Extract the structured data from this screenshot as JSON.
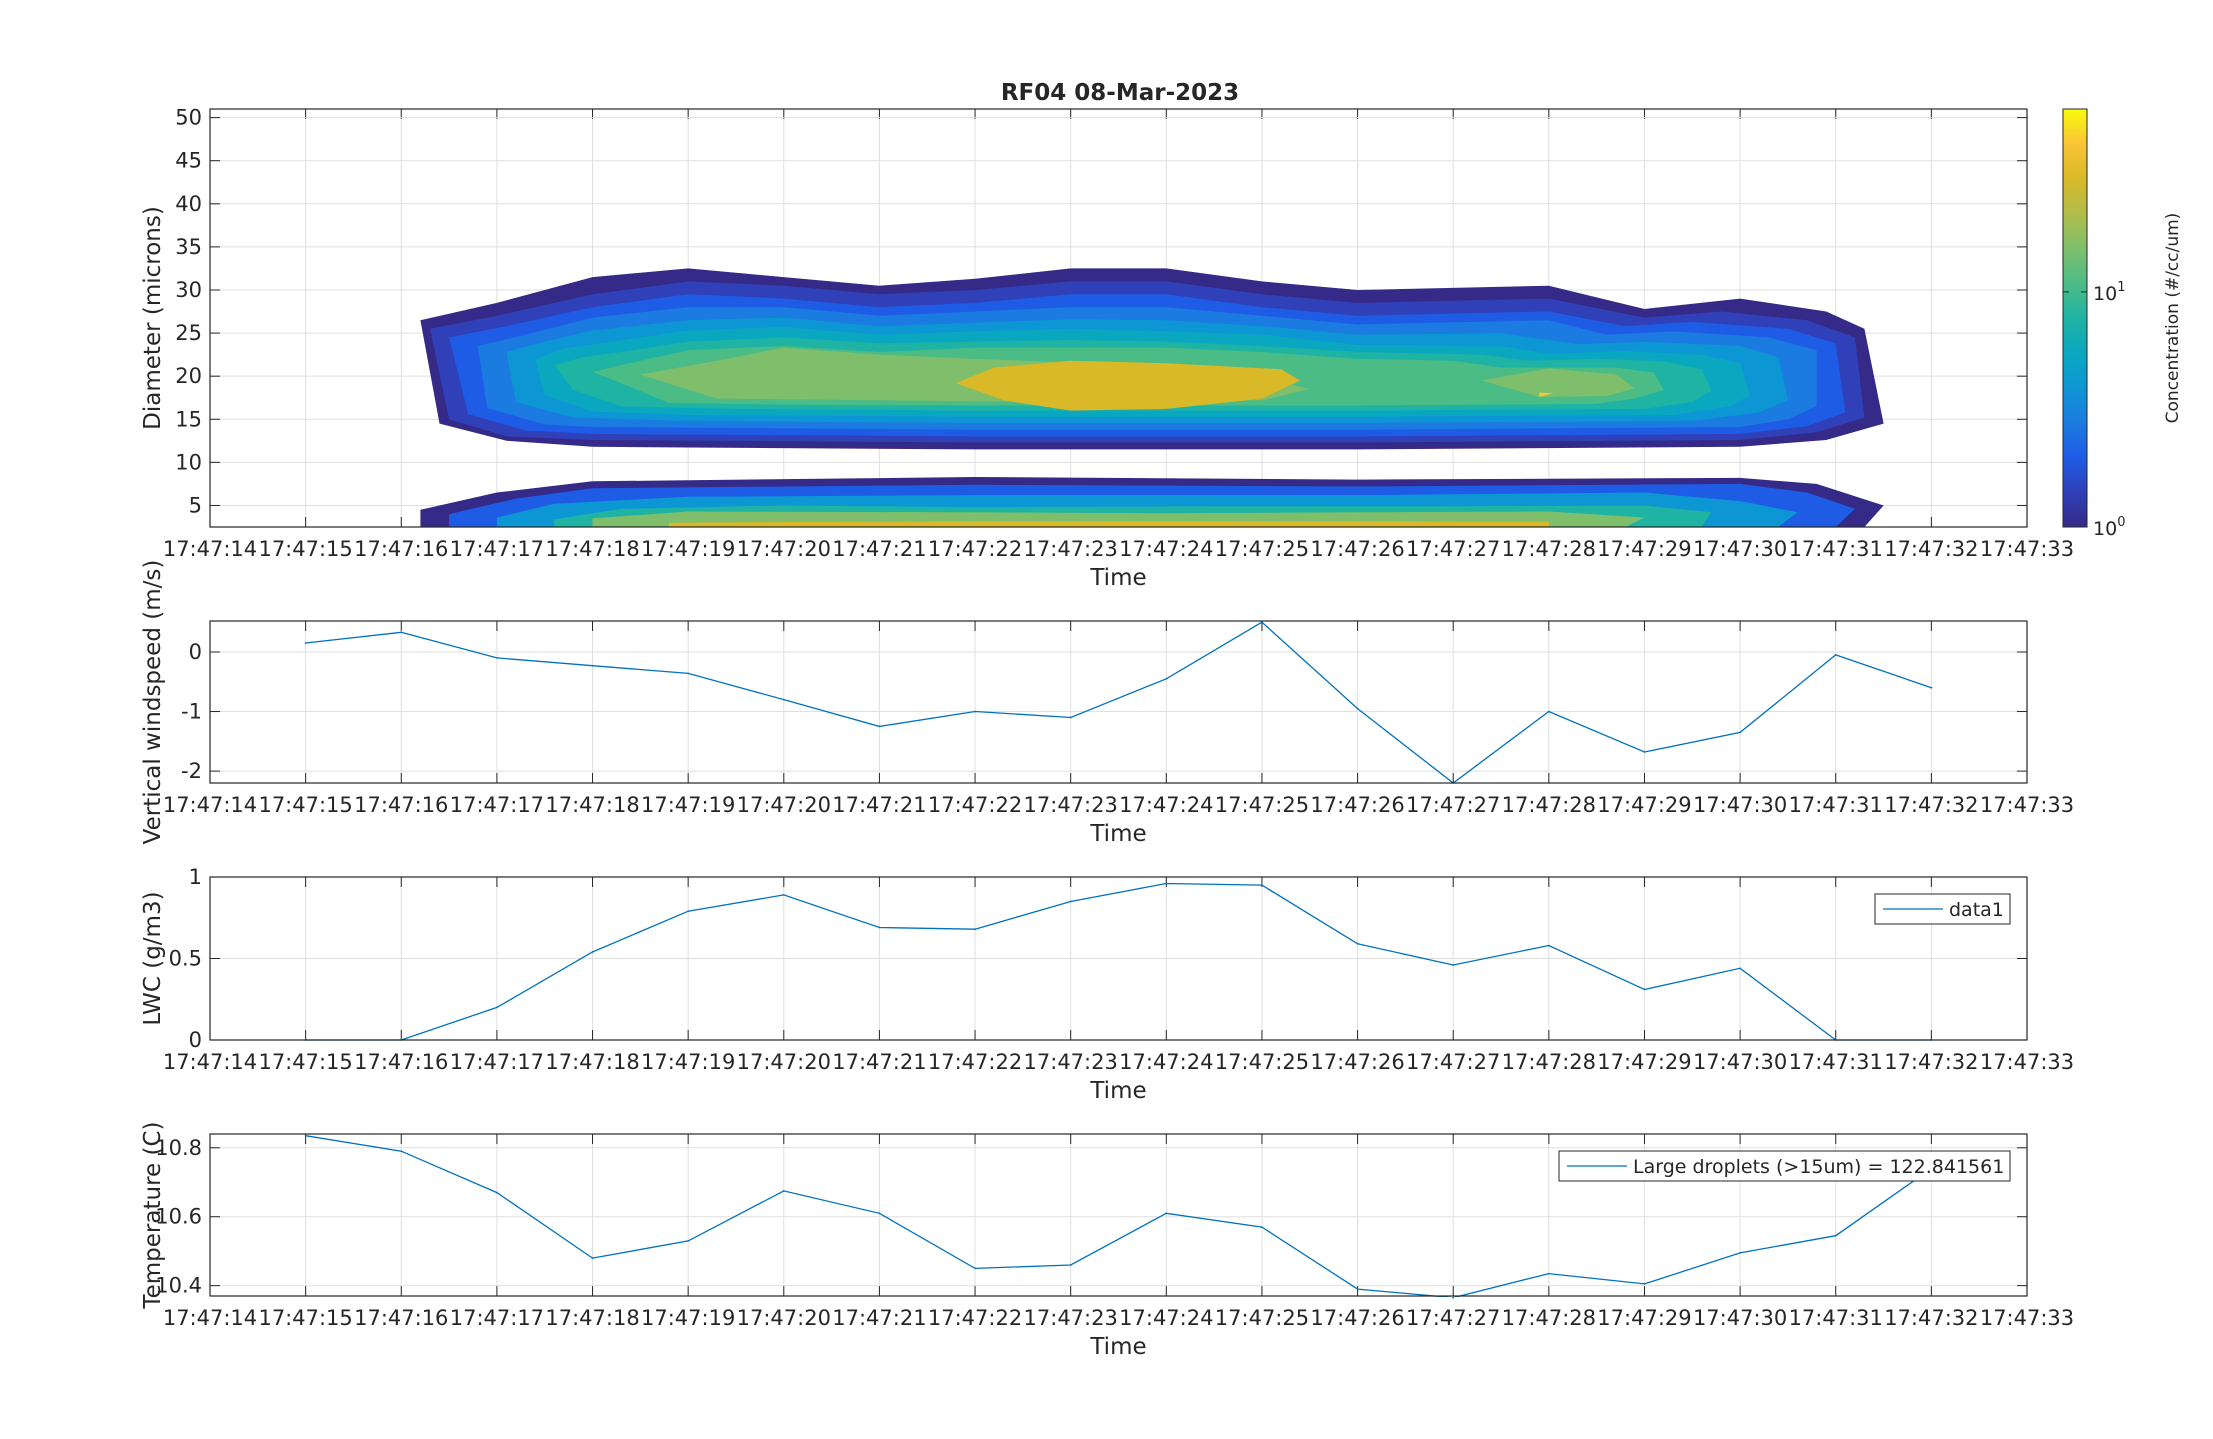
{
  "figure": {
    "title": "RF04 08-Mar-2023"
  },
  "colors": {
    "line": "#0072bd",
    "grid": "#dfdfdf",
    "axis": "#262626",
    "parula": [
      "#352a87",
      "#3040b8",
      "#1e5ce6",
      "#1c7be0",
      "#0d96d4",
      "#0aa8c0",
      "#1fb3a4",
      "#4cbc86",
      "#7fbf6c",
      "#b1bd4a",
      "#d9b927",
      "#f9c436",
      "#f9fb0e"
    ]
  },
  "time_ticks": [
    "17:47:14",
    "17:47:15",
    "17:47:16",
    "17:47:17",
    "17:47:18",
    "17:47:19",
    "17:47:20",
    "17:47:21",
    "17:47:22",
    "17:47:23",
    "17:47:24",
    "17:47:25",
    "17:47:26",
    "17:47:27",
    "17:47:28",
    "17:47:29",
    "17:47:30",
    "17:47:31",
    "17:47:32",
    "17:47:33"
  ],
  "chart_data": [
    {
      "type": "heatmap",
      "subtype": "filled-contour",
      "title": "RF04 08-Mar-2023",
      "xlabel": "Time",
      "ylabel": "Diameter (microns)",
      "yticks": [
        5,
        10,
        15,
        20,
        25,
        30,
        35,
        40,
        45,
        50
      ],
      "ylim": [
        2.5,
        51
      ],
      "colorbar": {
        "label": "Concentration (#/cc/um)",
        "scale": "log",
        "ticks": [
          "10^0",
          "10^1"
        ],
        "range": [
          1,
          60
        ]
      },
      "note": "Cloud droplet size distribution spanning 17:47:15.2-17:47:31.4; peak concentration (~20-30 #/cc/um) at 16-21 microns between 17:47:21.8 and 17:47:25.4; second mode below 6 microns",
      "grid": true
    },
    {
      "type": "line",
      "x": [
        "17:47:15",
        "17:47:16",
        "17:47:17",
        "17:47:18",
        "17:47:19",
        "17:47:20",
        "17:47:21",
        "17:47:22",
        "17:47:23",
        "17:47:24",
        "17:47:25",
        "17:47:26",
        "17:47:27",
        "17:47:28",
        "17:47:29",
        "17:47:30",
        "17:47:31",
        "17:47:32"
      ],
      "series": [
        {
          "values": [
            0.15,
            0.33,
            -0.1,
            -0.23,
            -0.36,
            -0.8,
            -1.25,
            -1.0,
            -1.1,
            -0.45,
            0.5,
            -0.95,
            -2.2,
            -1.0,
            -1.68,
            -1.35,
            -0.05,
            -0.6
          ]
        }
      ],
      "xlabel": "Time",
      "ylabel": "Vertical windspeed (m/s)",
      "yticks": [
        0,
        -1,
        -2
      ],
      "ylim": [
        -2.2,
        0.52
      ],
      "grid": true
    },
    {
      "type": "line",
      "x": [
        "17:47:15",
        "17:47:16",
        "17:47:17",
        "17:47:18",
        "17:47:19",
        "17:47:20",
        "17:47:21",
        "17:47:22",
        "17:47:23",
        "17:47:24",
        "17:47:25",
        "17:47:26",
        "17:47:27",
        "17:47:28",
        "17:47:29",
        "17:47:30",
        "17:47:31",
        "17:47:32"
      ],
      "series": [
        {
          "name": "data1",
          "values": [
            0.0,
            0.0,
            0.2,
            0.54,
            0.79,
            0.89,
            0.69,
            0.68,
            0.85,
            0.96,
            0.95,
            0.59,
            0.46,
            0.58,
            0.31,
            0.44,
            0.0,
            0.0
          ]
        }
      ],
      "xlabel": "Time",
      "ylabel": "LWC (g/m3)",
      "yticks": [
        0,
        0.5,
        1
      ],
      "ylim": [
        0,
        1
      ],
      "legend": "top-right",
      "grid": true
    },
    {
      "type": "line",
      "x": [
        "17:47:15",
        "17:47:16",
        "17:47:17",
        "17:47:18",
        "17:47:19",
        "17:47:20",
        "17:47:21",
        "17:47:22",
        "17:47:23",
        "17:47:24",
        "17:47:25",
        "17:47:26",
        "17:47:27",
        "17:47:28",
        "17:47:29",
        "17:47:30",
        "17:47:31",
        "17:47:32"
      ],
      "series": [
        {
          "name": "Large droplets (>15um) = 122.841561",
          "values": [
            10.835,
            10.79,
            10.67,
            10.48,
            10.53,
            10.675,
            10.61,
            10.45,
            10.46,
            10.61,
            10.57,
            10.39,
            10.365,
            10.435,
            10.405,
            10.495,
            10.545,
            10.74
          ]
        }
      ],
      "xlabel": "Time",
      "ylabel": "Temperature (C)",
      "yticks": [
        10.4,
        10.6,
        10.8
      ],
      "ylim": [
        10.37,
        10.84
      ],
      "legend": "top-right",
      "grid": true
    }
  ]
}
